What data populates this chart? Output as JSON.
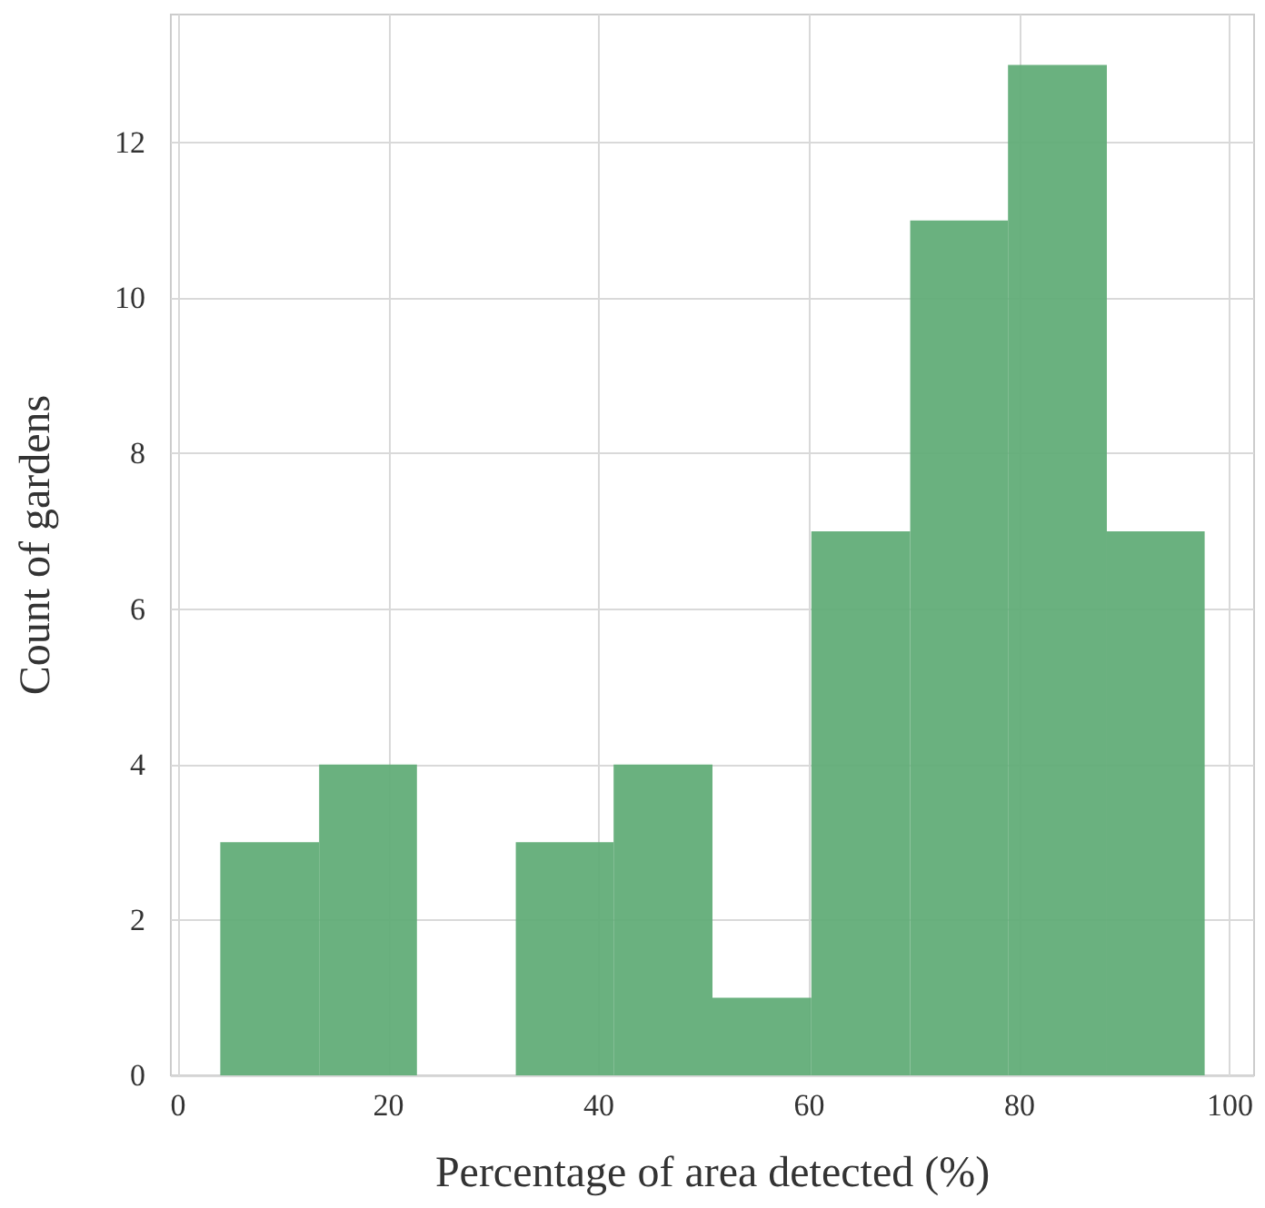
{
  "chart_data": {
    "type": "histogram",
    "xlabel": "Percentage of area detected (%)",
    "ylabel": "Count of gardens",
    "bins": [
      4,
      13.4,
      22.7,
      32.1,
      41.4,
      50.8,
      60.2,
      69.6,
      78.9,
      88.3,
      97.6
    ],
    "values": [
      3,
      4,
      0,
      3,
      4,
      1,
      7,
      11,
      13,
      7
    ],
    "color": "#62ad78",
    "xlim": [
      -0.7,
      102.3
    ],
    "xticks": [
      0,
      20,
      40,
      60,
      80,
      100
    ],
    "ylim": [
      0,
      13.65
    ],
    "yticks": [
      0,
      2,
      4,
      6,
      8,
      10,
      12
    ],
    "grid": true
  }
}
